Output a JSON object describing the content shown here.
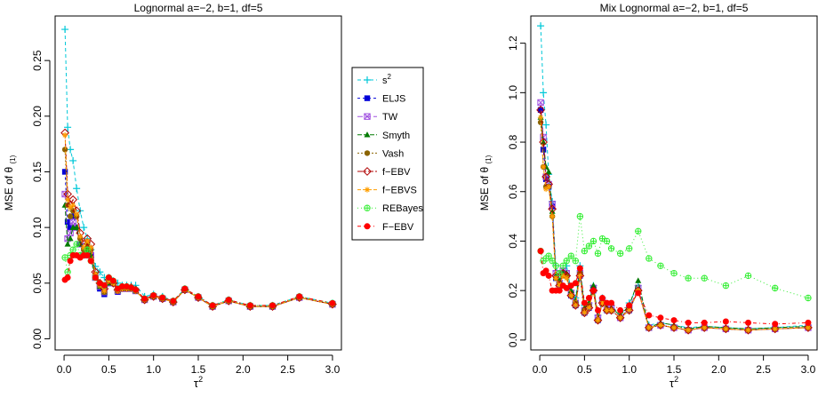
{
  "legend": {
    "entries": [
      {
        "label": "s",
        "sup": "2",
        "color": "#00c8d8",
        "marker": "plus"
      },
      {
        "label": "ELJS",
        "color": "#0000d8",
        "marker": "square"
      },
      {
        "label": "TW",
        "color": "#a050e0",
        "marker": "boxx"
      },
      {
        "label": "Smyth",
        "color": "#007a00",
        "marker": "triangle"
      },
      {
        "label": "Vash",
        "color": "#8b6400",
        "marker": "circle"
      },
      {
        "label": "f−EBV",
        "color": "#b00000",
        "marker": "diamond-open"
      },
      {
        "label": "f−EBVS",
        "color": "#ff9e00",
        "marker": "asterisk"
      },
      {
        "label": "REBayes",
        "color": "#33ee33",
        "marker": "circle-plus"
      },
      {
        "label": "F−EBV",
        "color": "#ff0000",
        "marker": "circle-filled"
      }
    ]
  },
  "chart_data": [
    {
      "type": "line",
      "title": "Lognormal    a=−2,  b=1,  df=5",
      "xlabel_base": "τ",
      "xlabel_sup": "2",
      "ylabel_base": "MSE of θ",
      "ylabel_sub": "(1)",
      "xlim": [
        -0.1,
        3.1
      ],
      "ylim": [
        -0.01,
        0.29
      ],
      "xticks": [
        "0.0",
        "0.5",
        "1.0",
        "1.5",
        "2.0",
        "2.5",
        "3.0"
      ],
      "xtick_values": [
        0,
        0.5,
        1,
        1.5,
        2,
        2.5,
        3
      ],
      "yticks": [
        "0.00",
        "0.05",
        "0.10",
        "0.15",
        "0.20",
        "0.25"
      ],
      "ytick_values": [
        0,
        0.05,
        0.1,
        0.15,
        0.2,
        0.25
      ],
      "x": [
        0.01,
        0.04,
        0.07,
        0.1,
        0.14,
        0.18,
        0.22,
        0.26,
        0.3,
        0.35,
        0.4,
        0.45,
        0.5,
        0.55,
        0.6,
        0.65,
        0.7,
        0.75,
        0.8,
        0.9,
        1.0,
        1.1,
        1.22,
        1.35,
        1.5,
        1.66,
        1.84,
        2.08,
        2.33,
        2.63,
        3.0
      ],
      "series": [
        {
          "name": "s2",
          "values": [
            0.278,
            0.19,
            0.17,
            0.16,
            0.135,
            0.115,
            0.1,
            0.09,
            0.08,
            0.065,
            0.06,
            0.055,
            0.055,
            0.052,
            0.05,
            0.048,
            0.048,
            0.048,
            0.048,
            0.038,
            0.04,
            0.038,
            0.034,
            0.045,
            0.038,
            0.03,
            0.035,
            0.03,
            0.03,
            0.038,
            0.032
          ]
        },
        {
          "name": "ELJS",
          "values": [
            0.15,
            0.105,
            0.1,
            0.11,
            0.1,
            0.085,
            0.075,
            0.08,
            0.075,
            0.055,
            0.045,
            0.04,
            0.05,
            0.05,
            0.042,
            0.045,
            0.045,
            0.045,
            0.043,
            0.035,
            0.038,
            0.036,
            0.033,
            0.044,
            0.037,
            0.029,
            0.034,
            0.029,
            0.029,
            0.037,
            0.031
          ]
        },
        {
          "name": "TW",
          "values": [
            0.13,
            0.09,
            0.095,
            0.105,
            0.1,
            0.085,
            0.075,
            0.08,
            0.075,
            0.055,
            0.047,
            0.042,
            0.05,
            0.05,
            0.043,
            0.045,
            0.045,
            0.045,
            0.043,
            0.035,
            0.038,
            0.036,
            0.033,
            0.044,
            0.037,
            0.029,
            0.034,
            0.029,
            0.029,
            0.037,
            0.031
          ]
        },
        {
          "name": "Smyth",
          "values": [
            0.12,
            0.085,
            0.09,
            0.1,
            0.1,
            0.085,
            0.075,
            0.08,
            0.075,
            0.055,
            0.047,
            0.042,
            0.05,
            0.05,
            0.043,
            0.045,
            0.045,
            0.045,
            0.043,
            0.035,
            0.038,
            0.036,
            0.033,
            0.044,
            0.037,
            0.029,
            0.034,
            0.029,
            0.029,
            0.037,
            0.031
          ]
        },
        {
          "name": "Vash",
          "values": [
            0.17,
            0.12,
            0.11,
            0.115,
            0.11,
            0.09,
            0.08,
            0.085,
            0.08,
            0.058,
            0.048,
            0.042,
            0.052,
            0.05,
            0.043,
            0.045,
            0.045,
            0.045,
            0.043,
            0.035,
            0.038,
            0.036,
            0.033,
            0.044,
            0.037,
            0.029,
            0.034,
            0.029,
            0.029,
            0.037,
            0.031
          ]
        },
        {
          "name": "f-EBV",
          "values": [
            0.185,
            0.13,
            0.12,
            0.125,
            0.115,
            0.095,
            0.085,
            0.09,
            0.085,
            0.06,
            0.05,
            0.045,
            0.053,
            0.05,
            0.044,
            0.046,
            0.046,
            0.046,
            0.044,
            0.035,
            0.038,
            0.036,
            0.033,
            0.044,
            0.037,
            0.029,
            0.034,
            0.029,
            0.029,
            0.037,
            0.031
          ]
        },
        {
          "name": "f-EBVS",
          "values": [
            0.183,
            0.125,
            0.118,
            0.12,
            0.112,
            0.092,
            0.082,
            0.088,
            0.082,
            0.058,
            0.048,
            0.043,
            0.052,
            0.05,
            0.043,
            0.045,
            0.045,
            0.045,
            0.043,
            0.035,
            0.038,
            0.036,
            0.033,
            0.044,
            0.037,
            0.029,
            0.034,
            0.029,
            0.029,
            0.037,
            0.031
          ]
        },
        {
          "name": "REBayes",
          "values": [
            0.073,
            0.06,
            0.075,
            0.08,
            0.085,
            0.075,
            0.075,
            0.08,
            0.07,
            0.055,
            0.05,
            0.048,
            0.055,
            0.052,
            0.045,
            0.047,
            0.047,
            0.046,
            0.044,
            0.036,
            0.039,
            0.037,
            0.034,
            0.045,
            0.038,
            0.03,
            0.035,
            0.03,
            0.03,
            0.038,
            0.032
          ]
        },
        {
          "name": "F-EBV",
          "values": [
            0.053,
            0.055,
            0.07,
            0.075,
            0.075,
            0.073,
            0.075,
            0.075,
            0.07,
            0.055,
            0.05,
            0.048,
            0.055,
            0.052,
            0.045,
            0.047,
            0.047,
            0.046,
            0.044,
            0.036,
            0.039,
            0.037,
            0.034,
            0.045,
            0.038,
            0.03,
            0.035,
            0.03,
            0.03,
            0.038,
            0.032
          ]
        }
      ]
    },
    {
      "type": "line",
      "title": "Mix Lognormal    a=−2,  b=1,  df=5",
      "xlabel_base": "τ",
      "xlabel_sup": "2",
      "ylabel_base": "MSE of θ",
      "ylabel_sub": "(1)",
      "xlim": [
        -0.1,
        3.1
      ],
      "ylim": [
        -0.04,
        1.31
      ],
      "xticks": [
        "0.0",
        "0.5",
        "1.0",
        "1.5",
        "2.0",
        "2.5",
        "3.0"
      ],
      "xtick_values": [
        0,
        0.5,
        1,
        1.5,
        2,
        2.5,
        3
      ],
      "yticks": [
        "0.0",
        "0.2",
        "0.4",
        "0.6",
        "0.8",
        "1.0",
        "1.2"
      ],
      "ytick_values": [
        0,
        0.2,
        0.4,
        0.6,
        0.8,
        1.0,
        1.2
      ],
      "x": [
        0.01,
        0.04,
        0.07,
        0.1,
        0.14,
        0.18,
        0.22,
        0.26,
        0.3,
        0.35,
        0.4,
        0.45,
        0.5,
        0.55,
        0.6,
        0.65,
        0.7,
        0.75,
        0.8,
        0.9,
        1.0,
        1.1,
        1.22,
        1.35,
        1.5,
        1.66,
        1.84,
        2.08,
        2.33,
        2.63,
        3.0
      ],
      "series": [
        {
          "name": "s2",
          "values": [
            1.27,
            1.0,
            0.87,
            0.67,
            0.56,
            0.3,
            0.24,
            0.28,
            0.3,
            0.2,
            0.17,
            0.3,
            0.14,
            0.15,
            0.22,
            0.1,
            0.17,
            0.14,
            0.14,
            0.1,
            0.15,
            0.22,
            0.06,
            0.07,
            0.06,
            0.05,
            0.055,
            0.05,
            0.045,
            0.05,
            0.06
          ]
        },
        {
          "name": "ELJS",
          "values": [
            0.93,
            0.77,
            0.65,
            0.62,
            0.54,
            0.25,
            0.22,
            0.27,
            0.26,
            0.18,
            0.14,
            0.26,
            0.11,
            0.13,
            0.2,
            0.08,
            0.15,
            0.12,
            0.12,
            0.09,
            0.12,
            0.2,
            0.05,
            0.06,
            0.05,
            0.04,
            0.05,
            0.045,
            0.04,
            0.045,
            0.05
          ]
        },
        {
          "name": "TW",
          "values": [
            0.96,
            0.82,
            0.66,
            0.63,
            0.55,
            0.27,
            0.23,
            0.28,
            0.27,
            0.19,
            0.15,
            0.27,
            0.12,
            0.14,
            0.21,
            0.09,
            0.16,
            0.13,
            0.13,
            0.09,
            0.13,
            0.21,
            0.05,
            0.06,
            0.05,
            0.04,
            0.05,
            0.045,
            0.04,
            0.045,
            0.05
          ]
        },
        {
          "name": "Smyth",
          "values": [
            0.9,
            0.8,
            0.7,
            0.68,
            0.52,
            0.26,
            0.24,
            0.27,
            0.27,
            0.2,
            0.16,
            0.28,
            0.13,
            0.15,
            0.22,
            0.09,
            0.16,
            0.13,
            0.13,
            0.1,
            0.14,
            0.24,
            0.05,
            0.07,
            0.06,
            0.045,
            0.055,
            0.05,
            0.045,
            0.05,
            0.055
          ]
        },
        {
          "name": "Vash",
          "values": [
            0.88,
            0.7,
            0.62,
            0.62,
            0.5,
            0.25,
            0.23,
            0.26,
            0.26,
            0.18,
            0.15,
            0.27,
            0.12,
            0.14,
            0.2,
            0.08,
            0.15,
            0.12,
            0.12,
            0.09,
            0.13,
            0.2,
            0.05,
            0.06,
            0.05,
            0.04,
            0.05,
            0.045,
            0.04,
            0.045,
            0.05
          ]
        },
        {
          "name": "f-EBV",
          "values": [
            0.93,
            0.8,
            0.66,
            0.63,
            0.53,
            0.26,
            0.22,
            0.27,
            0.26,
            0.18,
            0.14,
            0.26,
            0.11,
            0.13,
            0.2,
            0.08,
            0.15,
            0.12,
            0.12,
            0.09,
            0.12,
            0.2,
            0.05,
            0.06,
            0.05,
            0.04,
            0.05,
            0.045,
            0.04,
            0.045,
            0.05
          ]
        },
        {
          "name": "f-EBVS",
          "values": [
            0.9,
            0.7,
            0.61,
            0.62,
            0.5,
            0.25,
            0.22,
            0.26,
            0.25,
            0.18,
            0.14,
            0.26,
            0.11,
            0.13,
            0.2,
            0.08,
            0.15,
            0.12,
            0.12,
            0.09,
            0.12,
            0.2,
            0.05,
            0.06,
            0.05,
            0.04,
            0.05,
            0.045,
            0.04,
            0.045,
            0.05
          ]
        },
        {
          "name": "REBayes",
          "values": [
            0.36,
            0.32,
            0.33,
            0.34,
            0.32,
            0.3,
            0.27,
            0.3,
            0.32,
            0.34,
            0.32,
            0.5,
            0.36,
            0.38,
            0.4,
            0.35,
            0.41,
            0.4,
            0.37,
            0.35,
            0.37,
            0.44,
            0.33,
            0.3,
            0.27,
            0.25,
            0.25,
            0.22,
            0.26,
            0.21,
            0.17
          ]
        },
        {
          "name": "F-EBV",
          "values": [
            0.36,
            0.27,
            0.28,
            0.26,
            0.2,
            0.2,
            0.2,
            0.22,
            0.21,
            0.22,
            0.23,
            0.29,
            0.15,
            0.17,
            0.2,
            0.12,
            0.17,
            0.15,
            0.15,
            0.12,
            0.14,
            0.19,
            0.1,
            0.09,
            0.08,
            0.07,
            0.07,
            0.075,
            0.07,
            0.065,
            0.07
          ]
        }
      ]
    }
  ]
}
